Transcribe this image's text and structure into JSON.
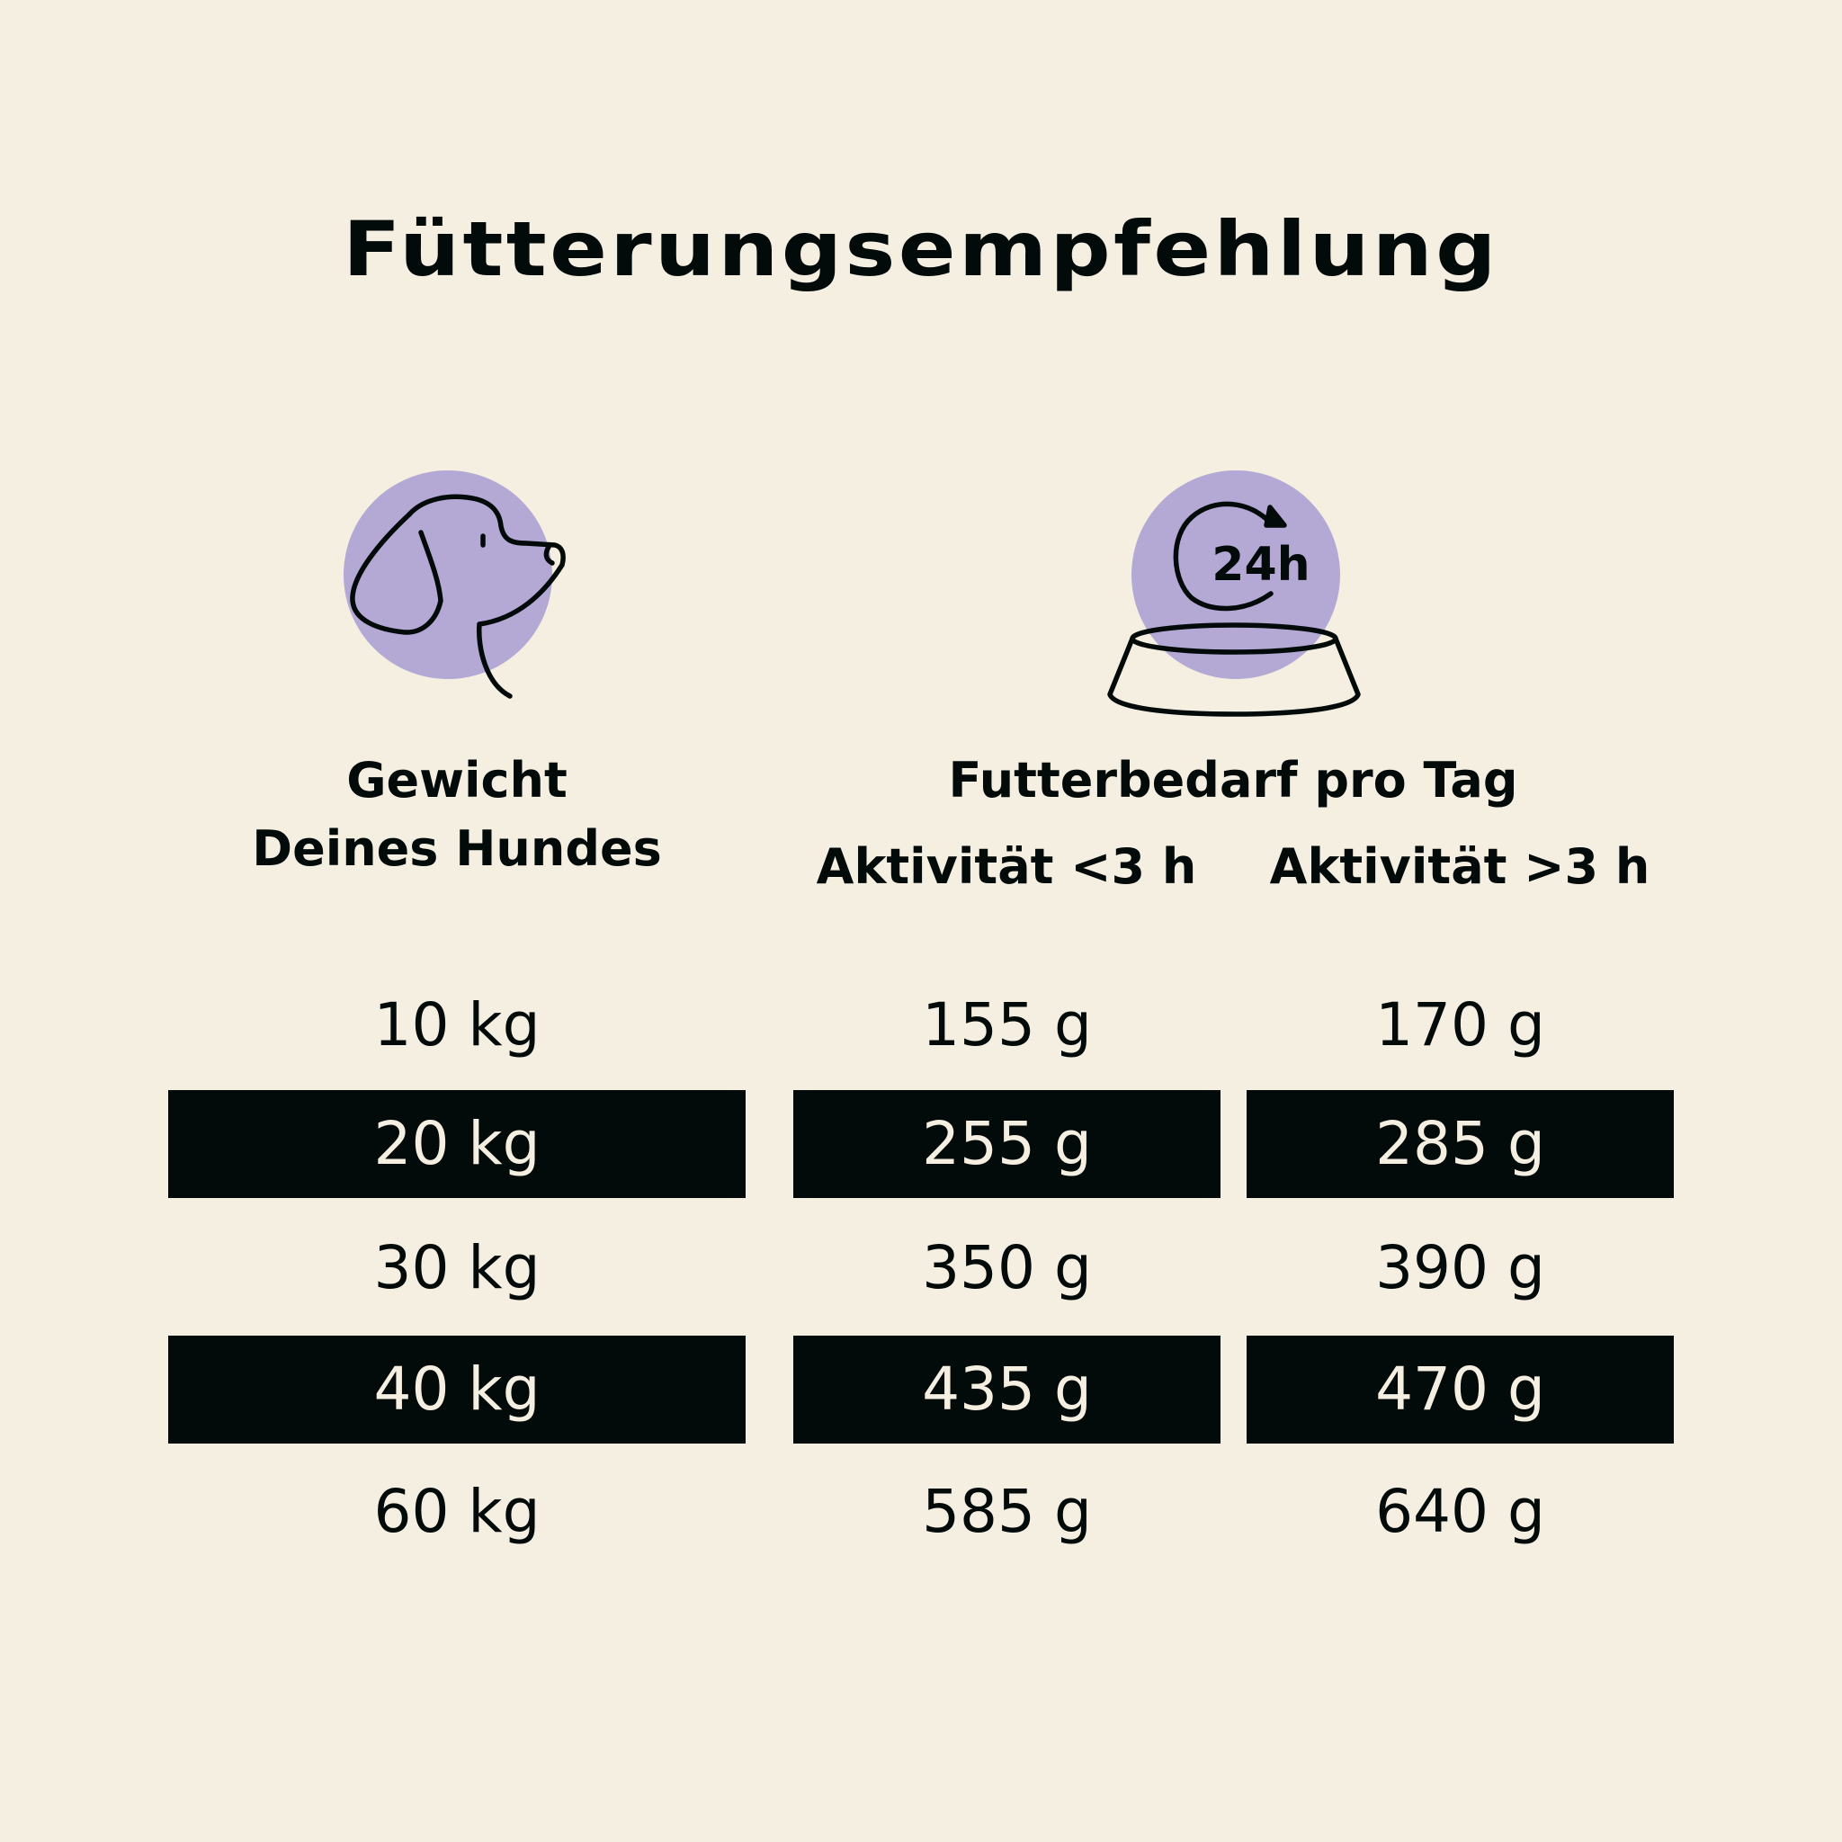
{
  "title": "Fütterungsempfehlung",
  "colors": {
    "background": "#f5efe1",
    "accent": "#b3a9d4",
    "dark": "#030a0a"
  },
  "icons": {
    "weight": "dog-head-icon",
    "food": "bowl-24h-icon",
    "clock_text": "24h"
  },
  "headers": {
    "weight_line1": "Gewicht",
    "weight_line2": "Deines Hundes",
    "food": "Futterbedarf pro Tag",
    "activity_low": "Aktivität <3 h",
    "activity_high": "Aktivität >3 h"
  },
  "rows": [
    {
      "weight": "10 kg",
      "low": "155 g",
      "high": "170 g",
      "highlighted": false
    },
    {
      "weight": "20 kg",
      "low": "255 g",
      "high": "285 g",
      "highlighted": true
    },
    {
      "weight": "30 kg",
      "low": "350 g",
      "high": "390 g",
      "highlighted": false
    },
    {
      "weight": "40 kg",
      "low": "435 g",
      "high": "470 g",
      "highlighted": true
    },
    {
      "weight": "60 kg",
      "low": "585 g",
      "high": "640 g",
      "highlighted": false
    }
  ]
}
